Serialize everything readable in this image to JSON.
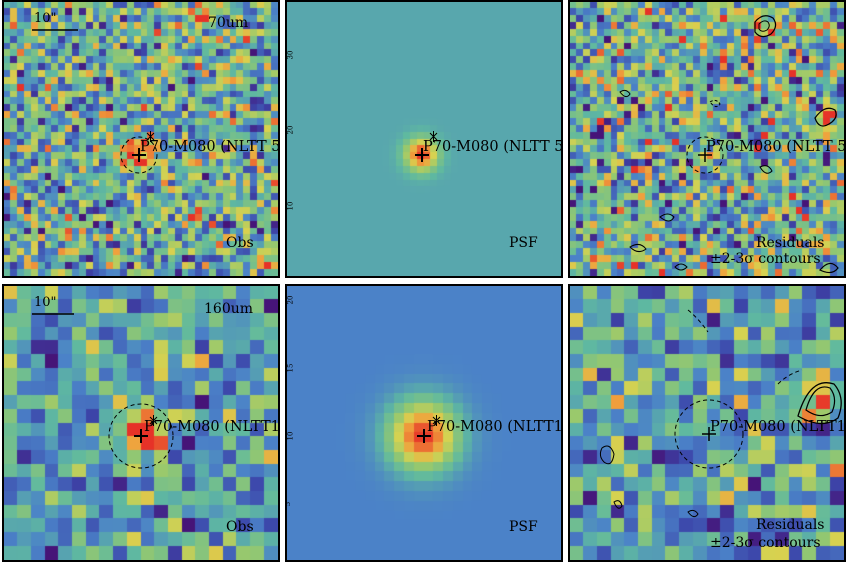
{
  "source_label": "P70-M080 (NLTT 5",
  "source_label_row2": "P70-M080 (NLTT1",
  "rows": [
    {
      "band": "70um",
      "scalebar": "10\"",
      "obs_label": "Obs",
      "psf_label": "PSF",
      "res_label": "Residuals",
      "contour_label": "±2-3σ contours"
    },
    {
      "band": "160um",
      "scalebar": "10\"",
      "obs_label": "Obs",
      "psf_label": "PSF",
      "res_label": "Residuals",
      "contour_label": "±2-3σ contours"
    }
  ],
  "psf_ticks_row1": [
    "30",
    "20",
    "10"
  ],
  "psf_ticks_row2": [
    "20",
    "15",
    "10",
    "5"
  ],
  "colormap": "viridis-like (blue-green-yellow-red)"
}
